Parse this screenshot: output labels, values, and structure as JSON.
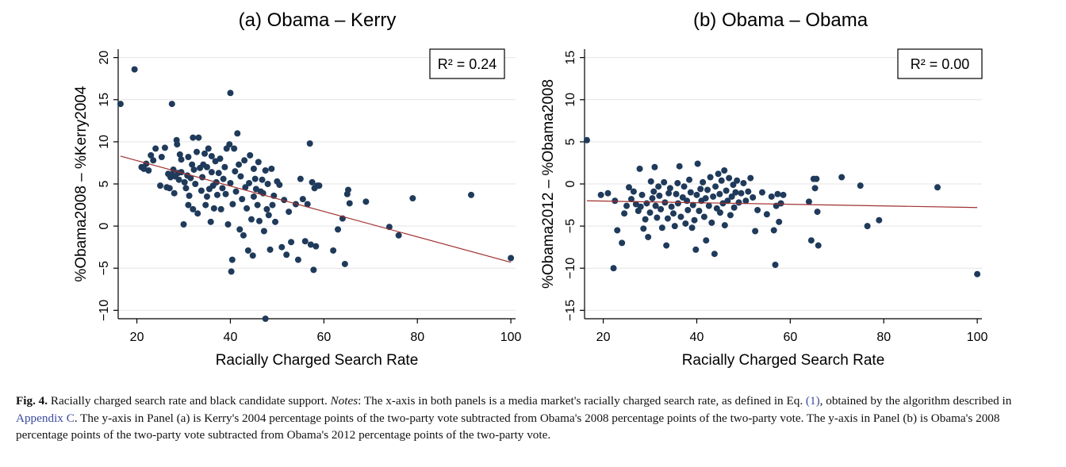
{
  "chart_data": [
    {
      "type": "scatter",
      "title": "(a) Obama – Kerry",
      "xlabel": "Racially Charged Search Rate",
      "ylabel": "%Obama2008 – %Kerry2004",
      "xlim": [
        16,
        101
      ],
      "ylim": [
        -11,
        21
      ],
      "xticks": [
        "20",
        "40",
        "60",
        "80",
        "100"
      ],
      "yticks": [
        "−10",
        "−5",
        "0",
        "5",
        "10",
        "15",
        "20"
      ],
      "annotation": "R² = 0.24",
      "fit_line": [
        [
          16.5,
          8.3
        ],
        [
          100,
          -4.3
        ]
      ],
      "colors": {
        "points": "#1f3a5a",
        "fit": "#a03030"
      },
      "points": [
        [
          16.5,
          14.5
        ],
        [
          19.5,
          18.6
        ],
        [
          21,
          7
        ],
        [
          21.5,
          6.8
        ],
        [
          22,
          7.4
        ],
        [
          22.5,
          6.6
        ],
        [
          23,
          8.4
        ],
        [
          23.5,
          7.8
        ],
        [
          24,
          9.2
        ],
        [
          25,
          4.8
        ],
        [
          25.3,
          8.2
        ],
        [
          26,
          9.3
        ],
        [
          26.4,
          4.6
        ],
        [
          26.7,
          6.2
        ],
        [
          27,
          4.5
        ],
        [
          27.2,
          5.8
        ],
        [
          27.5,
          6.1
        ],
        [
          27.5,
          14.5
        ],
        [
          27.8,
          6.7
        ],
        [
          28,
          3.9
        ],
        [
          28.2,
          5.9
        ],
        [
          28.5,
          10.2
        ],
        [
          28.6,
          9.7
        ],
        [
          28.8,
          6.3
        ],
        [
          29,
          5.5
        ],
        [
          29.2,
          8.5
        ],
        [
          29.5,
          6.4
        ],
        [
          29.5,
          7.9
        ],
        [
          30,
          0.2
        ],
        [
          30.2,
          5.2
        ],
        [
          30.5,
          4.5
        ],
        [
          30.8,
          6
        ],
        [
          31,
          2.5
        ],
        [
          31,
          8.2
        ],
        [
          31.2,
          3.6
        ],
        [
          31.5,
          5.7
        ],
        [
          31.8,
          7.3
        ],
        [
          32,
          10.5
        ],
        [
          32,
          2
        ],
        [
          32.2,
          6.7
        ],
        [
          32.5,
          5
        ],
        [
          32.8,
          8.8
        ],
        [
          33,
          1.5
        ],
        [
          33.2,
          10.5
        ],
        [
          33.5,
          6.9
        ],
        [
          33.8,
          4.2
        ],
        [
          34,
          5.8
        ],
        [
          34.2,
          7.3
        ],
        [
          34.5,
          8.6
        ],
        [
          34.7,
          2.5
        ],
        [
          35,
          7
        ],
        [
          35,
          3.5
        ],
        [
          35.3,
          9.2
        ],
        [
          35.5,
          4.4
        ],
        [
          35.8,
          0.5
        ],
        [
          36,
          6.4
        ],
        [
          36,
          8.3
        ],
        [
          36.3,
          4.8
        ],
        [
          36.5,
          2.1
        ],
        [
          36.8,
          7.7
        ],
        [
          37,
          5.2
        ],
        [
          37.2,
          3.7
        ],
        [
          37.5,
          6.3
        ],
        [
          37.8,
          8
        ],
        [
          38,
          2
        ],
        [
          38.3,
          4.5
        ],
        [
          38.5,
          5.6
        ],
        [
          38.8,
          7
        ],
        [
          39,
          3.8
        ],
        [
          39.2,
          9.2
        ],
        [
          39.5,
          0.2
        ],
        [
          39.8,
          9.7
        ],
        [
          40,
          5.1
        ],
        [
          40,
          15.8
        ],
        [
          40.2,
          -5.4
        ],
        [
          40.4,
          -4
        ],
        [
          40.5,
          2.6
        ],
        [
          40.8,
          9.2
        ],
        [
          41,
          6.5
        ],
        [
          41.2,
          4.1
        ],
        [
          41.5,
          11
        ],
        [
          41.8,
          7.3
        ],
        [
          42,
          -0.4
        ],
        [
          42.2,
          5.9
        ],
        [
          42.5,
          3.2
        ],
        [
          42.8,
          -1.1
        ],
        [
          43,
          7.8
        ],
        [
          43.2,
          4.6
        ],
        [
          43.5,
          2.1
        ],
        [
          43.8,
          -2.9
        ],
        [
          44,
          5.1
        ],
        [
          44.2,
          8.4
        ],
        [
          44.5,
          0.8
        ],
        [
          44.8,
          -3.5
        ],
        [
          45,
          3.5
        ],
        [
          45,
          6.8
        ],
        [
          45.3,
          5.6
        ],
        [
          45.5,
          4.4
        ],
        [
          45.8,
          2.5
        ],
        [
          46,
          7.6
        ],
        [
          46.2,
          0.6
        ],
        [
          46.5,
          4.1
        ],
        [
          46.8,
          5.5
        ],
        [
          47,
          3.9
        ],
        [
          47.2,
          -0.6
        ],
        [
          47.5,
          -11
        ],
        [
          47.5,
          6.6
        ],
        [
          47.8,
          2
        ],
        [
          48,
          5
        ],
        [
          48.2,
          1.3
        ],
        [
          48.5,
          -2.8
        ],
        [
          48.8,
          6.8
        ],
        [
          49,
          2.5
        ],
        [
          49.3,
          3.6
        ],
        [
          49.6,
          0.5
        ],
        [
          50,
          5.3
        ],
        [
          50.5,
          4.9
        ],
        [
          51,
          -2.5
        ],
        [
          51.5,
          3.1
        ],
        [
          52,
          -3.4
        ],
        [
          52.5,
          1.7
        ],
        [
          53,
          -1.9
        ],
        [
          54,
          2.6
        ],
        [
          54.5,
          -4
        ],
        [
          55,
          5.6
        ],
        [
          55.5,
          3.2
        ],
        [
          56,
          -1.8
        ],
        [
          56.5,
          2.6
        ],
        [
          57,
          9.8
        ],
        [
          57.2,
          -2.2
        ],
        [
          57.5,
          5.2
        ],
        [
          57.8,
          -5.2
        ],
        [
          58,
          4.5
        ],
        [
          58.3,
          -2.4
        ],
        [
          58.6,
          4.8
        ],
        [
          59,
          4.8
        ],
        [
          62,
          -2.9
        ],
        [
          63,
          -0.4
        ],
        [
          64,
          0.9
        ],
        [
          64.5,
          -4.5
        ],
        [
          65,
          3.8
        ],
        [
          65.2,
          4.3
        ],
        [
          65.5,
          2.7
        ],
        [
          69,
          2.9
        ],
        [
          74,
          -0.1
        ],
        [
          76,
          -1.1
        ],
        [
          79,
          3.3
        ],
        [
          91.5,
          3.7
        ],
        [
          100,
          -3.8
        ]
      ]
    },
    {
      "type": "scatter",
      "title": "(b) Obama – Obama",
      "xlabel": "Racially Charged Search Rate",
      "ylabel": "%Obama2012 – %Obama2008",
      "xlim": [
        16,
        101
      ],
      "ylim": [
        -16,
        16
      ],
      "xticks": [
        "20",
        "40",
        "60",
        "80",
        "100"
      ],
      "yticks": [
        "−15",
        "−10",
        "−5",
        "0",
        "5",
        "10",
        "15"
      ],
      "annotation": "R² = 0.00",
      "fit_line": [
        [
          16.5,
          -2.0
        ],
        [
          100,
          -2.8
        ]
      ],
      "colors": {
        "points": "#1f3a5a",
        "fit": "#a03030"
      },
      "points": [
        [
          16.5,
          5.2
        ],
        [
          19.5,
          -1.3
        ],
        [
          21,
          -1.1
        ],
        [
          22.2,
          -10
        ],
        [
          22.5,
          -2
        ],
        [
          23,
          -5.5
        ],
        [
          24,
          -7
        ],
        [
          24.5,
          -3.5
        ],
        [
          25,
          -2.6
        ],
        [
          25.5,
          -0.4
        ],
        [
          26,
          -1.8
        ],
        [
          26.5,
          -0.9
        ],
        [
          27,
          -2.4
        ],
        [
          27.5,
          -3.2
        ],
        [
          27.8,
          1.8
        ],
        [
          28,
          -2.7
        ],
        [
          28.3,
          -1.3
        ],
        [
          28.6,
          -5.3
        ],
        [
          29,
          -4.2
        ],
        [
          29.3,
          -2.3
        ],
        [
          29.6,
          -6.3
        ],
        [
          30,
          -3.4
        ],
        [
          30.2,
          0.3
        ],
        [
          30.5,
          -1.7
        ],
        [
          30.8,
          -0.9
        ],
        [
          31,
          2
        ],
        [
          31.2,
          -2.6
        ],
        [
          31.5,
          -4
        ],
        [
          31.8,
          -0.3
        ],
        [
          32,
          -1.4
        ],
        [
          32.3,
          -3
        ],
        [
          32.6,
          -5.2
        ],
        [
          33,
          0.2
        ],
        [
          33.2,
          -2.2
        ],
        [
          33.5,
          -7.3
        ],
        [
          33.8,
          -4.1
        ],
        [
          34,
          -1.1
        ],
        [
          34.3,
          -0.5
        ],
        [
          34.6,
          -2.7
        ],
        [
          35,
          -3.5
        ],
        [
          35.3,
          -5
        ],
        [
          35.6,
          -1.2
        ],
        [
          35.9,
          0.1
        ],
        [
          36,
          -2.3
        ],
        [
          36.3,
          2.1
        ],
        [
          36.6,
          -3.9
        ],
        [
          37,
          -1.6
        ],
        [
          37.3,
          -0.3
        ],
        [
          37.6,
          -4.7
        ],
        [
          37.9,
          -2
        ],
        [
          38.1,
          -3.1
        ],
        [
          38.4,
          0.5
        ],
        [
          38.7,
          -1
        ],
        [
          39,
          -5.2
        ],
        [
          39.2,
          -2.5
        ],
        [
          39.5,
          -4.3
        ],
        [
          39.8,
          -7.8
        ],
        [
          40,
          -1.3
        ],
        [
          40.2,
          2.4
        ],
        [
          40.5,
          -3.2
        ],
        [
          40.8,
          -0.6
        ],
        [
          41,
          -2
        ],
        [
          41.3,
          0.2
        ],
        [
          41.6,
          -3.9
        ],
        [
          41.9,
          -1.7
        ],
        [
          42,
          -6.7
        ],
        [
          42.3,
          -0.7
        ],
        [
          42.6,
          -2.6
        ],
        [
          42.9,
          0.8
        ],
        [
          43.2,
          -4.6
        ],
        [
          43.5,
          -1.5
        ],
        [
          43.8,
          -8.3
        ],
        [
          44,
          -0.3
        ],
        [
          44.3,
          -2.9
        ],
        [
          44.6,
          1.2
        ],
        [
          44.9,
          -1.2
        ],
        [
          45,
          -3.4
        ],
        [
          45.3,
          0.4
        ],
        [
          45.6,
          -2.3
        ],
        [
          45.9,
          1.6
        ],
        [
          46,
          -4.9
        ],
        [
          46.3,
          -0.8
        ],
        [
          46.6,
          -2
        ],
        [
          46.9,
          0.7
        ],
        [
          47.2,
          -3.7
        ],
        [
          47.5,
          -1.5
        ],
        [
          47.8,
          -0.1
        ],
        [
          48,
          -2.8
        ],
        [
          48.3,
          -1
        ],
        [
          48.6,
          0.4
        ],
        [
          49,
          -2.2
        ],
        [
          49.5,
          -1.1
        ],
        [
          50,
          0.1
        ],
        [
          50.5,
          -2
        ],
        [
          51,
          -0.9
        ],
        [
          51.5,
          0.7
        ],
        [
          52,
          -1.6
        ],
        [
          52.5,
          -5.6
        ],
        [
          53,
          -3.1
        ],
        [
          54,
          -1
        ],
        [
          55,
          -3.6
        ],
        [
          56,
          -1.5
        ],
        [
          56.5,
          -5.5
        ],
        [
          56.8,
          -9.6
        ],
        [
          57,
          -2.6
        ],
        [
          57.3,
          -1.2
        ],
        [
          57.6,
          -4.5
        ],
        [
          58,
          -2.3
        ],
        [
          58.5,
          -1.3
        ],
        [
          64,
          -2.1
        ],
        [
          64.5,
          -6.7
        ],
        [
          65,
          0.6
        ],
        [
          65.3,
          -0.5
        ],
        [
          65.6,
          0.6
        ],
        [
          65.8,
          -3.3
        ],
        [
          66,
          -7.3
        ],
        [
          71,
          0.8
        ],
        [
          75,
          -0.2
        ],
        [
          76.5,
          -5
        ],
        [
          79,
          -4.3
        ],
        [
          91.5,
          -0.4
        ],
        [
          100,
          -10.7
        ]
      ]
    }
  ],
  "caption": {
    "fig_label": "Fig. 4.",
    "lead": " Racially charged search rate and black candidate support. ",
    "notes_label": "Notes",
    "text1": ": The x-axis in both panels is a media market's racially charged search rate, as defined in Eq. ",
    "eq_link": "(1)",
    "text2": ", obtained by the algorithm described in ",
    "appendix_link": "Appendix C",
    "text3": ". The y-axis in Panel (a) is Kerry's 2004 percentage points of the two-party vote subtracted from Obama's 2008 percentage points of the two-party vote. The y-axis in Panel (b) is Obama's 2008 percentage points of the two-party vote subtracted from Obama's 2012 percentage points of the two-party vote."
  }
}
